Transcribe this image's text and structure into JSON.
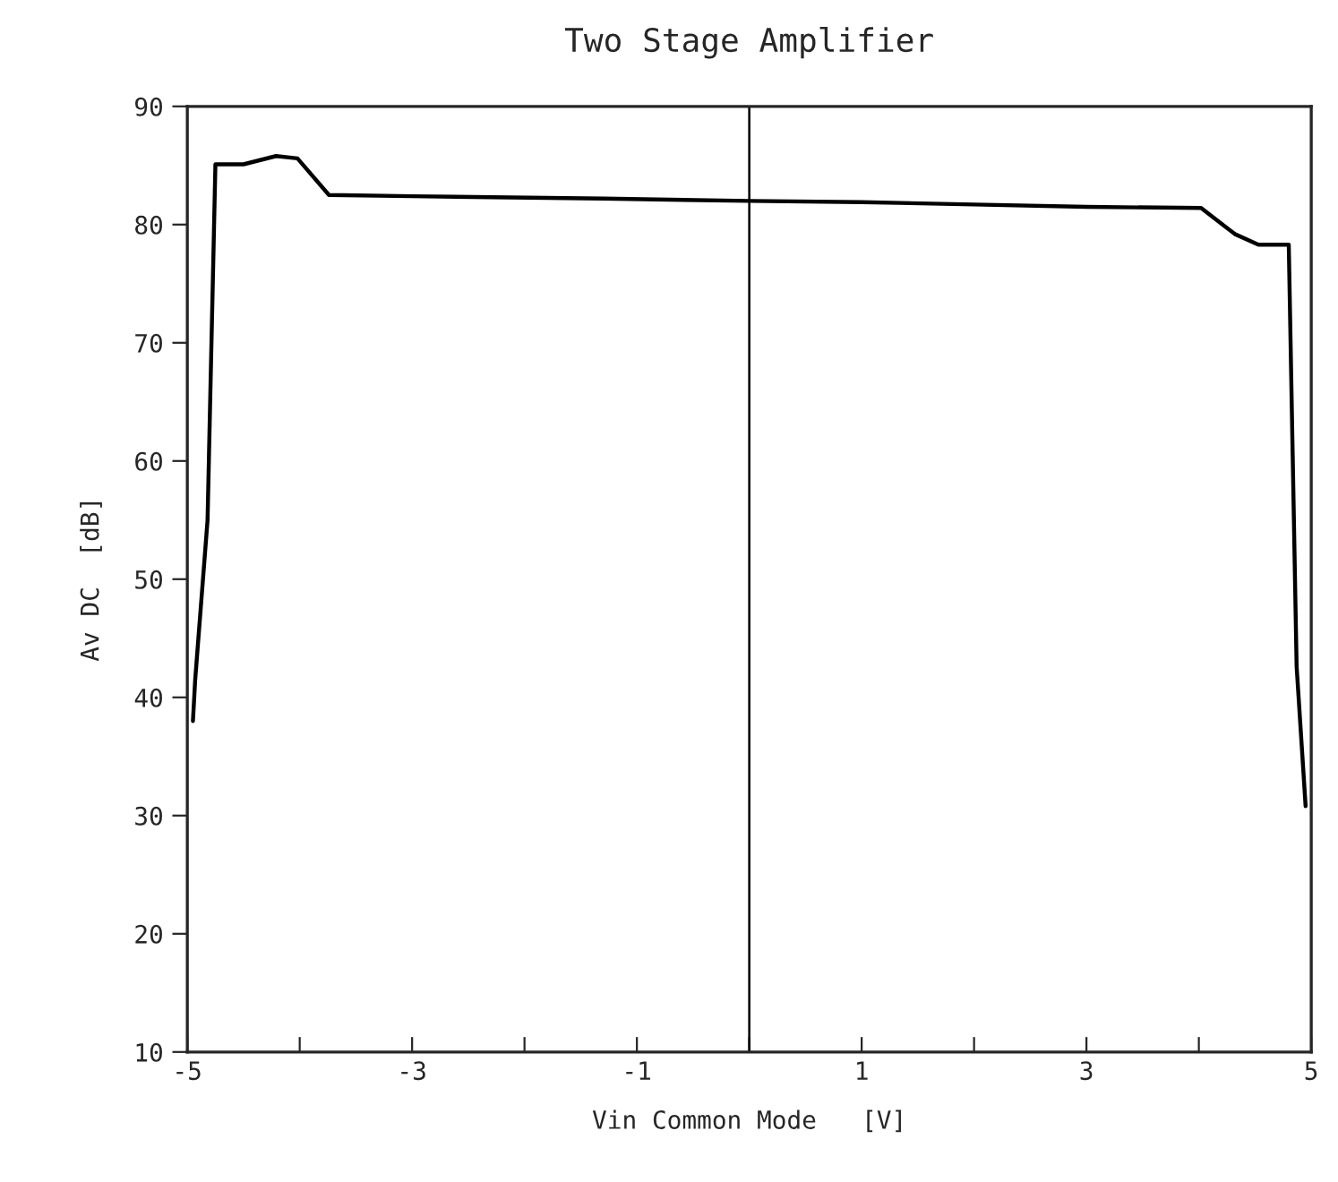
{
  "chart_data": {
    "type": "line",
    "title": "Two Stage Amplifier",
    "xlabel": "Vin Common Mode   [V]",
    "ylabel": "Av DC  [dB]",
    "series": [
      {
        "color": "#000000",
        "x": [
          -4.95,
          -4.93,
          -4.82,
          -4.75,
          -4.5,
          -4.21,
          -4.02,
          -3.74,
          -3,
          -1.3,
          0,
          1,
          2,
          3,
          4.02,
          4.32,
          4.53,
          4.8,
          4.87,
          4.95
        ],
        "values": [
          38,
          41.5,
          55,
          85.1,
          85.1,
          85.8,
          85.6,
          82.5,
          82.4,
          82.2,
          82.0,
          81.9,
          81.7,
          81.5,
          81.4,
          79.2,
          78.3,
          78.3,
          42.6,
          30.8
        ]
      }
    ],
    "xlim": [
      -5,
      5
    ],
    "ylim": [
      10,
      90
    ],
    "xticks": [
      -5,
      {
        "value": -4,
        "label": null
      },
      -3,
      {
        "value": -2,
        "label": null
      },
      -1,
      {
        "value": 0,
        "label": null
      },
      1,
      {
        "value": 2,
        "label": null
      },
      3,
      {
        "value": 4,
        "label": null
      },
      5
    ],
    "yticks": [
      10,
      20,
      30,
      40,
      50,
      60,
      70,
      80,
      90
    ],
    "ref_lines": [
      {
        "axis": "x",
        "value": 0,
        "color": "#000000"
      }
    ],
    "grid": false,
    "legend": false,
    "marker": "none",
    "line_style": "solid"
  }
}
